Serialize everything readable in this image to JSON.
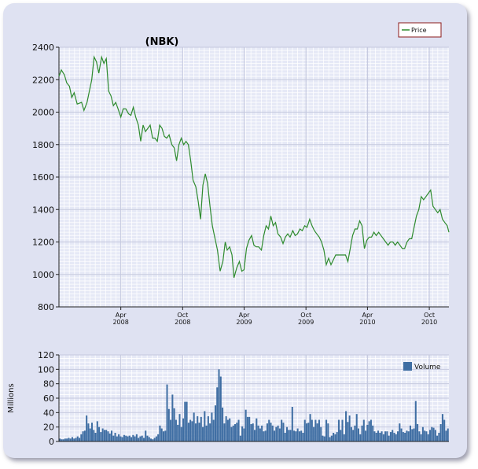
{
  "chart_data": [
    {
      "type": "line",
      "title": "(NBK)",
      "legend": {
        "entries": [
          "Price"
        ],
        "placement": "top-right"
      },
      "grid": true,
      "colors": {
        "line": "#2e8b2e",
        "plot_bg": "#e6e9f6",
        "grid": "#ffffff"
      },
      "ylim": [
        800,
        2400
      ],
      "yticks": [
        800,
        1000,
        1200,
        1400,
        1600,
        1800,
        2000,
        2200,
        2400
      ],
      "xlim": [
        "2007-10-01",
        "2010-11-28"
      ],
      "xticks": [
        {
          "month": "Apr",
          "year": "2008",
          "date": "2008-04-01"
        },
        {
          "month": "Oct",
          "year": "2008",
          "date": "2008-10-01"
        },
        {
          "month": "Apr",
          "year": "2009",
          "date": "2009-04-01"
        },
        {
          "month": "Oct",
          "year": "2009",
          "date": "2009-10-01"
        },
        {
          "month": "Apr",
          "year": "2010",
          "date": "2010-04-01"
        },
        {
          "month": "Oct",
          "year": "2010",
          "date": "2010-10-01"
        }
      ],
      "series": [
        {
          "name": "Price",
          "points": [
            [
              "2007-10-01",
              2220
            ],
            [
              "2007-10-08",
              2260
            ],
            [
              "2007-10-17",
              2230
            ],
            [
              "2007-10-24",
              2180
            ],
            [
              "2007-11-01",
              2160
            ],
            [
              "2007-11-08",
              2090
            ],
            [
              "2007-11-15",
              2120
            ],
            [
              "2007-11-24",
              2050
            ],
            [
              "2007-12-07",
              2060
            ],
            [
              "2007-12-14",
              2010
            ],
            [
              "2007-12-23",
              2060
            ],
            [
              "2008-01-06",
              2200
            ],
            [
              "2008-01-13",
              2340
            ],
            [
              "2008-01-20",
              2310
            ],
            [
              "2008-01-27",
              2240
            ],
            [
              "2008-02-04",
              2340
            ],
            [
              "2008-02-11",
              2300
            ],
            [
              "2008-02-18",
              2330
            ],
            [
              "2008-02-25",
              2130
            ],
            [
              "2008-03-03",
              2100
            ],
            [
              "2008-03-10",
              2040
            ],
            [
              "2008-03-17",
              2060
            ],
            [
              "2008-03-24",
              2020
            ],
            [
              "2008-04-01",
              1970
            ],
            [
              "2008-04-08",
              2020
            ],
            [
              "2008-04-16",
              2020
            ],
            [
              "2008-04-24",
              1990
            ],
            [
              "2008-05-01",
              1980
            ],
            [
              "2008-05-08",
              2030
            ],
            [
              "2008-05-15",
              1970
            ],
            [
              "2008-05-23",
              1920
            ],
            [
              "2008-05-30",
              1820
            ],
            [
              "2008-06-06",
              1920
            ],
            [
              "2008-06-13",
              1880
            ],
            [
              "2008-06-20",
              1900
            ],
            [
              "2008-06-27",
              1920
            ],
            [
              "2008-07-04",
              1840
            ],
            [
              "2008-07-11",
              1840
            ],
            [
              "2008-07-18",
              1820
            ],
            [
              "2008-07-25",
              1920
            ],
            [
              "2008-08-01",
              1900
            ],
            [
              "2008-08-08",
              1850
            ],
            [
              "2008-08-15",
              1840
            ],
            [
              "2008-08-22",
              1860
            ],
            [
              "2008-08-30",
              1800
            ],
            [
              "2008-09-06",
              1780
            ],
            [
              "2008-09-13",
              1700
            ],
            [
              "2008-09-20",
              1800
            ],
            [
              "2008-09-27",
              1840
            ],
            [
              "2008-10-04",
              1800
            ],
            [
              "2008-10-11",
              1820
            ],
            [
              "2008-10-18",
              1800
            ],
            [
              "2008-10-25",
              1700
            ],
            [
              "2008-11-01",
              1580
            ],
            [
              "2008-11-09",
              1540
            ],
            [
              "2008-11-16",
              1450
            ],
            [
              "2008-11-23",
              1340
            ],
            [
              "2008-11-30",
              1550
            ],
            [
              "2008-12-07",
              1620
            ],
            [
              "2008-12-14",
              1560
            ],
            [
              "2008-12-21",
              1420
            ],
            [
              "2008-12-28",
              1300
            ],
            [
              "2009-01-04",
              1230
            ],
            [
              "2009-01-12",
              1150
            ],
            [
              "2009-01-20",
              1020
            ],
            [
              "2009-01-28",
              1080
            ],
            [
              "2009-02-04",
              1200
            ],
            [
              "2009-02-10",
              1150
            ],
            [
              "2009-02-17",
              1170
            ],
            [
              "2009-02-24",
              1120
            ],
            [
              "2009-03-02",
              980
            ],
            [
              "2009-03-10",
              1040
            ],
            [
              "2009-03-18",
              1080
            ],
            [
              "2009-03-25",
              1020
            ],
            [
              "2009-04-01",
              1030
            ],
            [
              "2009-04-08",
              1160
            ],
            [
              "2009-04-15",
              1210
            ],
            [
              "2009-04-23",
              1240
            ],
            [
              "2009-04-30",
              1180
            ],
            [
              "2009-05-07",
              1170
            ],
            [
              "2009-05-14",
              1170
            ],
            [
              "2009-05-22",
              1150
            ],
            [
              "2009-05-29",
              1240
            ],
            [
              "2009-06-05",
              1300
            ],
            [
              "2009-06-12",
              1280
            ],
            [
              "2009-06-19",
              1360
            ],
            [
              "2009-06-26",
              1300
            ],
            [
              "2009-07-03",
              1320
            ],
            [
              "2009-07-10",
              1250
            ],
            [
              "2009-07-18",
              1230
            ],
            [
              "2009-07-25",
              1190
            ],
            [
              "2009-08-01",
              1230
            ],
            [
              "2009-08-08",
              1250
            ],
            [
              "2009-08-15",
              1230
            ],
            [
              "2009-08-23",
              1270
            ],
            [
              "2009-08-30",
              1240
            ],
            [
              "2009-09-06",
              1250
            ],
            [
              "2009-09-13",
              1280
            ],
            [
              "2009-09-20",
              1270
            ],
            [
              "2009-09-27",
              1300
            ],
            [
              "2009-10-04",
              1290
            ],
            [
              "2009-10-12",
              1340
            ],
            [
              "2009-10-19",
              1300
            ],
            [
              "2009-10-26",
              1270
            ],
            [
              "2009-11-02",
              1250
            ],
            [
              "2009-11-09",
              1230
            ],
            [
              "2009-11-16",
              1200
            ],
            [
              "2009-11-23",
              1150
            ],
            [
              "2009-11-30",
              1060
            ],
            [
              "2009-12-07",
              1100
            ],
            [
              "2009-12-14",
              1060
            ],
            [
              "2009-12-21",
              1090
            ],
            [
              "2009-12-28",
              1120
            ],
            [
              "2010-01-05",
              1120
            ],
            [
              "2010-01-12",
              1120
            ],
            [
              "2010-01-19",
              1120
            ],
            [
              "2010-01-26",
              1120
            ],
            [
              "2010-02-02",
              1080
            ],
            [
              "2010-02-09",
              1160
            ],
            [
              "2010-02-16",
              1240
            ],
            [
              "2010-02-23",
              1280
            ],
            [
              "2010-03-02",
              1280
            ],
            [
              "2010-03-09",
              1330
            ],
            [
              "2010-03-16",
              1300
            ],
            [
              "2010-03-23",
              1160
            ],
            [
              "2010-03-30",
              1210
            ],
            [
              "2010-04-06",
              1230
            ],
            [
              "2010-04-13",
              1230
            ],
            [
              "2010-04-20",
              1260
            ],
            [
              "2010-04-27",
              1240
            ],
            [
              "2010-05-04",
              1260
            ],
            [
              "2010-05-11",
              1240
            ],
            [
              "2010-05-18",
              1220
            ],
            [
              "2010-05-25",
              1200
            ],
            [
              "2010-06-01",
              1180
            ],
            [
              "2010-06-08",
              1200
            ],
            [
              "2010-06-15",
              1200
            ],
            [
              "2010-06-22",
              1180
            ],
            [
              "2010-06-29",
              1200
            ],
            [
              "2010-07-06",
              1180
            ],
            [
              "2010-07-13",
              1160
            ],
            [
              "2010-07-20",
              1160
            ],
            [
              "2010-07-27",
              1200
            ],
            [
              "2010-08-03",
              1220
            ],
            [
              "2010-08-10",
              1220
            ],
            [
              "2010-08-17",
              1290
            ],
            [
              "2010-08-24",
              1360
            ],
            [
              "2010-08-31",
              1400
            ],
            [
              "2010-09-07",
              1480
            ],
            [
              "2010-09-14",
              1460
            ],
            [
              "2010-09-21",
              1480
            ],
            [
              "2010-09-28",
              1500
            ],
            [
              "2010-10-05",
              1520
            ],
            [
              "2010-10-12",
              1420
            ],
            [
              "2010-10-19",
              1400
            ],
            [
              "2010-10-26",
              1380
            ],
            [
              "2010-11-02",
              1400
            ],
            [
              "2010-11-09",
              1340
            ],
            [
              "2010-11-16",
              1320
            ],
            [
              "2010-11-23",
              1300
            ],
            [
              "2010-11-28",
              1260
            ]
          ]
        }
      ]
    },
    {
      "type": "bar",
      "ylabel": "Millions",
      "legend": {
        "entries": [
          "Volume"
        ],
        "placement": "top-right"
      },
      "grid": true,
      "colors": {
        "bar": "#3f6ea3",
        "plot_bg": "#e6e9f6",
        "grid": "#ffffff"
      },
      "ylim": [
        0,
        120
      ],
      "yticks": [
        0,
        20,
        40,
        60,
        80,
        100,
        120
      ],
      "xlim": [
        "2007-10-01",
        "2010-11-28"
      ],
      "series": [
        {
          "name": "Volume",
          "values": [
            4,
            3,
            3,
            4,
            4,
            5,
            4,
            6,
            4,
            5,
            7,
            5,
            10,
            14,
            15,
            36,
            25,
            18,
            26,
            16,
            12,
            28,
            20,
            13,
            18,
            16,
            16,
            14,
            11,
            15,
            8,
            12,
            7,
            10,
            7,
            6,
            9,
            8,
            7,
            8,
            6,
            9,
            7,
            10,
            5,
            7,
            8,
            5,
            15,
            8,
            6,
            4,
            3,
            5,
            7,
            10,
            22,
            18,
            14,
            15,
            79,
            45,
            30,
            65,
            46,
            30,
            23,
            38,
            20,
            32,
            55,
            55,
            26,
            30,
            28,
            40,
            25,
            35,
            26,
            34,
            20,
            42,
            22,
            35,
            25,
            40,
            30,
            50,
            75,
            100,
            90,
            47,
            25,
            35,
            30,
            32,
            20,
            22,
            24,
            26,
            30,
            8,
            21,
            18,
            44,
            34,
            34,
            24,
            25,
            16,
            32,
            22,
            18,
            22,
            14,
            15,
            25,
            30,
            26,
            22,
            15,
            20,
            22,
            18,
            30,
            26,
            12,
            20,
            16,
            16,
            48,
            15,
            14,
            18,
            14,
            15,
            12,
            30,
            25,
            26,
            38,
            30,
            20,
            30,
            25,
            30,
            20,
            8,
            7,
            30,
            25,
            6,
            8,
            12,
            10,
            13,
            30,
            16,
            30,
            10,
            42,
            27,
            36,
            20,
            16,
            22,
            38,
            18,
            10,
            22,
            30,
            15,
            23,
            28,
            30,
            22,
            14,
            12,
            15,
            12,
            14,
            10,
            14,
            14,
            8,
            13,
            16,
            12,
            10,
            14,
            25,
            18,
            13,
            12,
            15,
            14,
            22,
            17,
            18,
            56,
            24,
            14,
            10,
            20,
            15,
            14,
            10,
            16,
            20,
            19,
            16,
            8,
            12,
            24,
            38,
            30,
            15,
            18
          ]
        }
      ]
    }
  ]
}
